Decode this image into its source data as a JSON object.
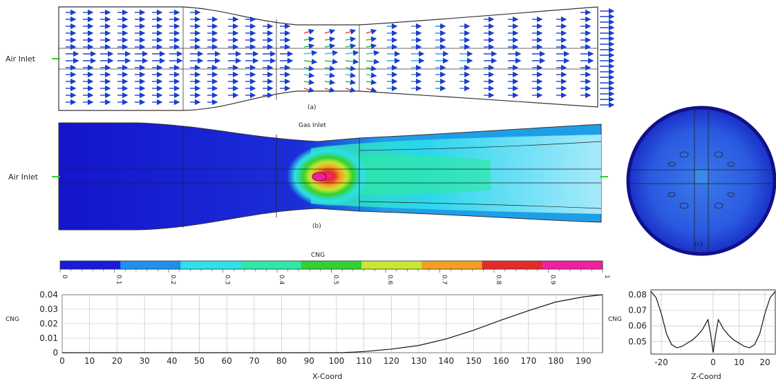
{
  "panel_a": {
    "air_inlet_label": "Air Inlet",
    "caption": "(a)"
  },
  "panel_b": {
    "air_inlet_label": "Air Inlet",
    "gas_inlet_label": "Gas Inlet",
    "caption": "(b)"
  },
  "panel_c": {
    "caption": "(c)"
  },
  "colorbar": {
    "title": "CNG",
    "ticks": [
      "0",
      "0.1",
      "0.2",
      "0.3",
      "0.4",
      "0.5",
      "0.6",
      "0.7",
      "0.8",
      "0.9",
      "1"
    ],
    "colors": [
      "#1a1ad8",
      "#1f8ff0",
      "#2ee0ee",
      "#2ee8a6",
      "#32d132",
      "#c8e632",
      "#f5a020",
      "#e62a2a",
      "#f020a0"
    ]
  },
  "chart_data": [
    {
      "type": "line",
      "ylabel": "CNG",
      "xlabel": "X-Coord",
      "xlim": [
        0,
        197
      ],
      "ylim": [
        0,
        0.04
      ],
      "xticks": [
        0,
        10,
        20,
        30,
        40,
        50,
        60,
        70,
        80,
        90,
        100,
        110,
        120,
        130,
        140,
        150,
        160,
        170,
        180,
        190
      ],
      "yticks": [
        "0",
        "0.01",
        "0.02",
        "0.03",
        "0.04"
      ],
      "grid": true,
      "series": [
        {
          "x": [
            0,
            100,
            102,
            110,
            120,
            130,
            140,
            150,
            160,
            170,
            180,
            190,
            197
          ],
          "values": [
            0,
            0,
            0,
            0.0008,
            0.0025,
            0.005,
            0.0095,
            0.0155,
            0.0225,
            0.029,
            0.035,
            0.0385,
            0.04
          ]
        }
      ]
    },
    {
      "type": "line",
      "ylabel": "CNG",
      "xlabel": "Z-Coord",
      "xlim": [
        -24,
        24
      ],
      "ylim": [
        0.042,
        0.083
      ],
      "xticks": [
        -20,
        0,
        10,
        20
      ],
      "yticks": [
        "0.05",
        "0.06",
        "0.07",
        "0.08"
      ],
      "grid": true,
      "series": [
        {
          "x": [
            -24,
            -22,
            -20,
            -18,
            -16,
            -14,
            -12,
            -10,
            -8,
            -6,
            -4,
            -2,
            -1,
            0,
            1,
            2,
            4,
            6,
            8,
            10,
            12,
            14,
            16,
            18,
            20,
            22,
            24
          ],
          "values": [
            0.082,
            0.078,
            0.068,
            0.055,
            0.048,
            0.046,
            0.047,
            0.049,
            0.051,
            0.054,
            0.058,
            0.064,
            0.055,
            0.043,
            0.055,
            0.064,
            0.058,
            0.054,
            0.051,
            0.049,
            0.047,
            0.046,
            0.048,
            0.055,
            0.068,
            0.078,
            0.082
          ]
        }
      ]
    }
  ]
}
